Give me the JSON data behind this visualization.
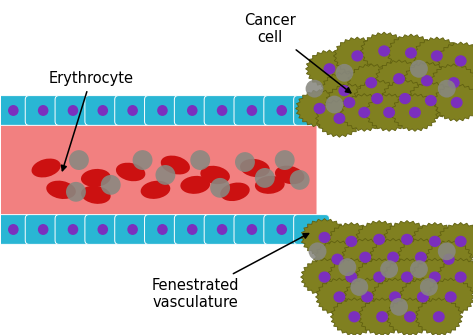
{
  "bg_color": "#ffffff",
  "vessel_color": "#f28080",
  "endothelial_color": "#29b6d4",
  "endothelial_nucleus_color": "#7b2fbe",
  "erythrocyte_color": "#cc1111",
  "nanoparticle_color": "#888880",
  "cancer_cell_color": "#808020",
  "cancer_cell_edge": "#606010",
  "cancer_nucleus_color": "#7b2fbe",
  "label_fontsize": 10.5,
  "labels": {
    "cancer_cell": "Cancer\ncell",
    "erythrocyte": "Erythrocyte",
    "fenestrated": "Fenestrated\nvasculature"
  }
}
